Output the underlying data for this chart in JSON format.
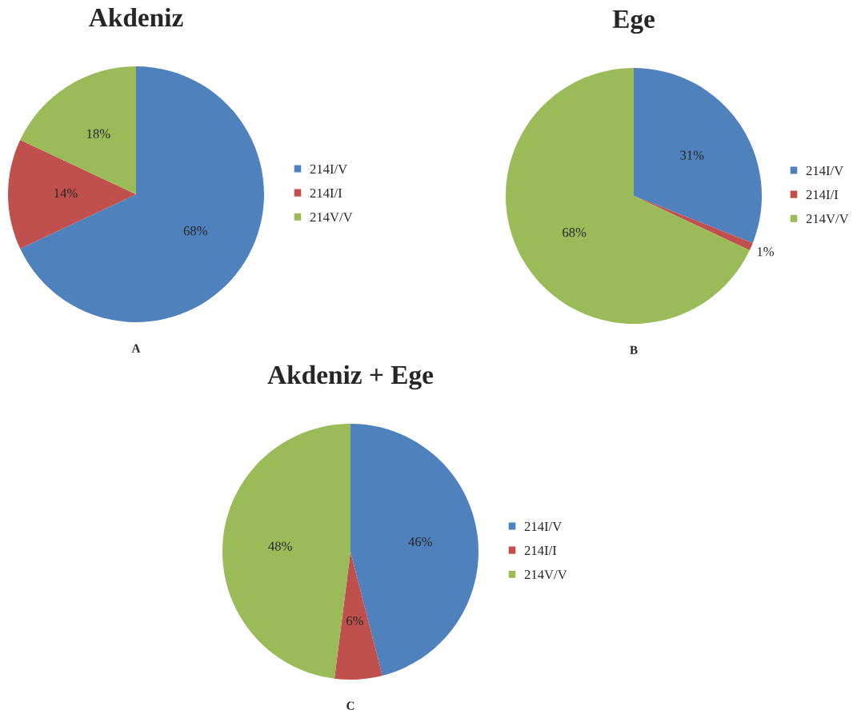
{
  "chart_data": [
    {
      "type": "pie",
      "title": "Akdeniz",
      "categories": [
        "214I/V",
        "214I/I",
        "214V/V"
      ],
      "values": [
        68,
        14,
        18
      ],
      "colors": [
        "#4f81bd",
        "#c0504d",
        "#9bbb59"
      ],
      "value_labels": [
        "68%",
        "14%",
        "18%"
      ],
      "legend": "right",
      "annotations": [
        "A"
      ]
    },
    {
      "type": "pie",
      "title": "Ege",
      "categories": [
        "214I/V",
        "214I/I",
        "214V/V"
      ],
      "values": [
        31,
        1,
        68
      ],
      "colors": [
        "#4f81bd",
        "#c0504d",
        "#9bbb59"
      ],
      "value_labels": [
        "31%",
        "1%",
        "68%"
      ],
      "legend": "right",
      "annotations": [
        "B"
      ]
    },
    {
      "type": "pie",
      "title": "Akdeniz + Ege",
      "categories": [
        "214I/V",
        "214I/I",
        "214V/V"
      ],
      "values": [
        46,
        6,
        48
      ],
      "colors": [
        "#4f81bd",
        "#c0504d",
        "#9bbb59"
      ],
      "value_labels": [
        "46%",
        "6%",
        "48%"
      ],
      "legend": "right",
      "annotations": [
        "C"
      ]
    }
  ]
}
